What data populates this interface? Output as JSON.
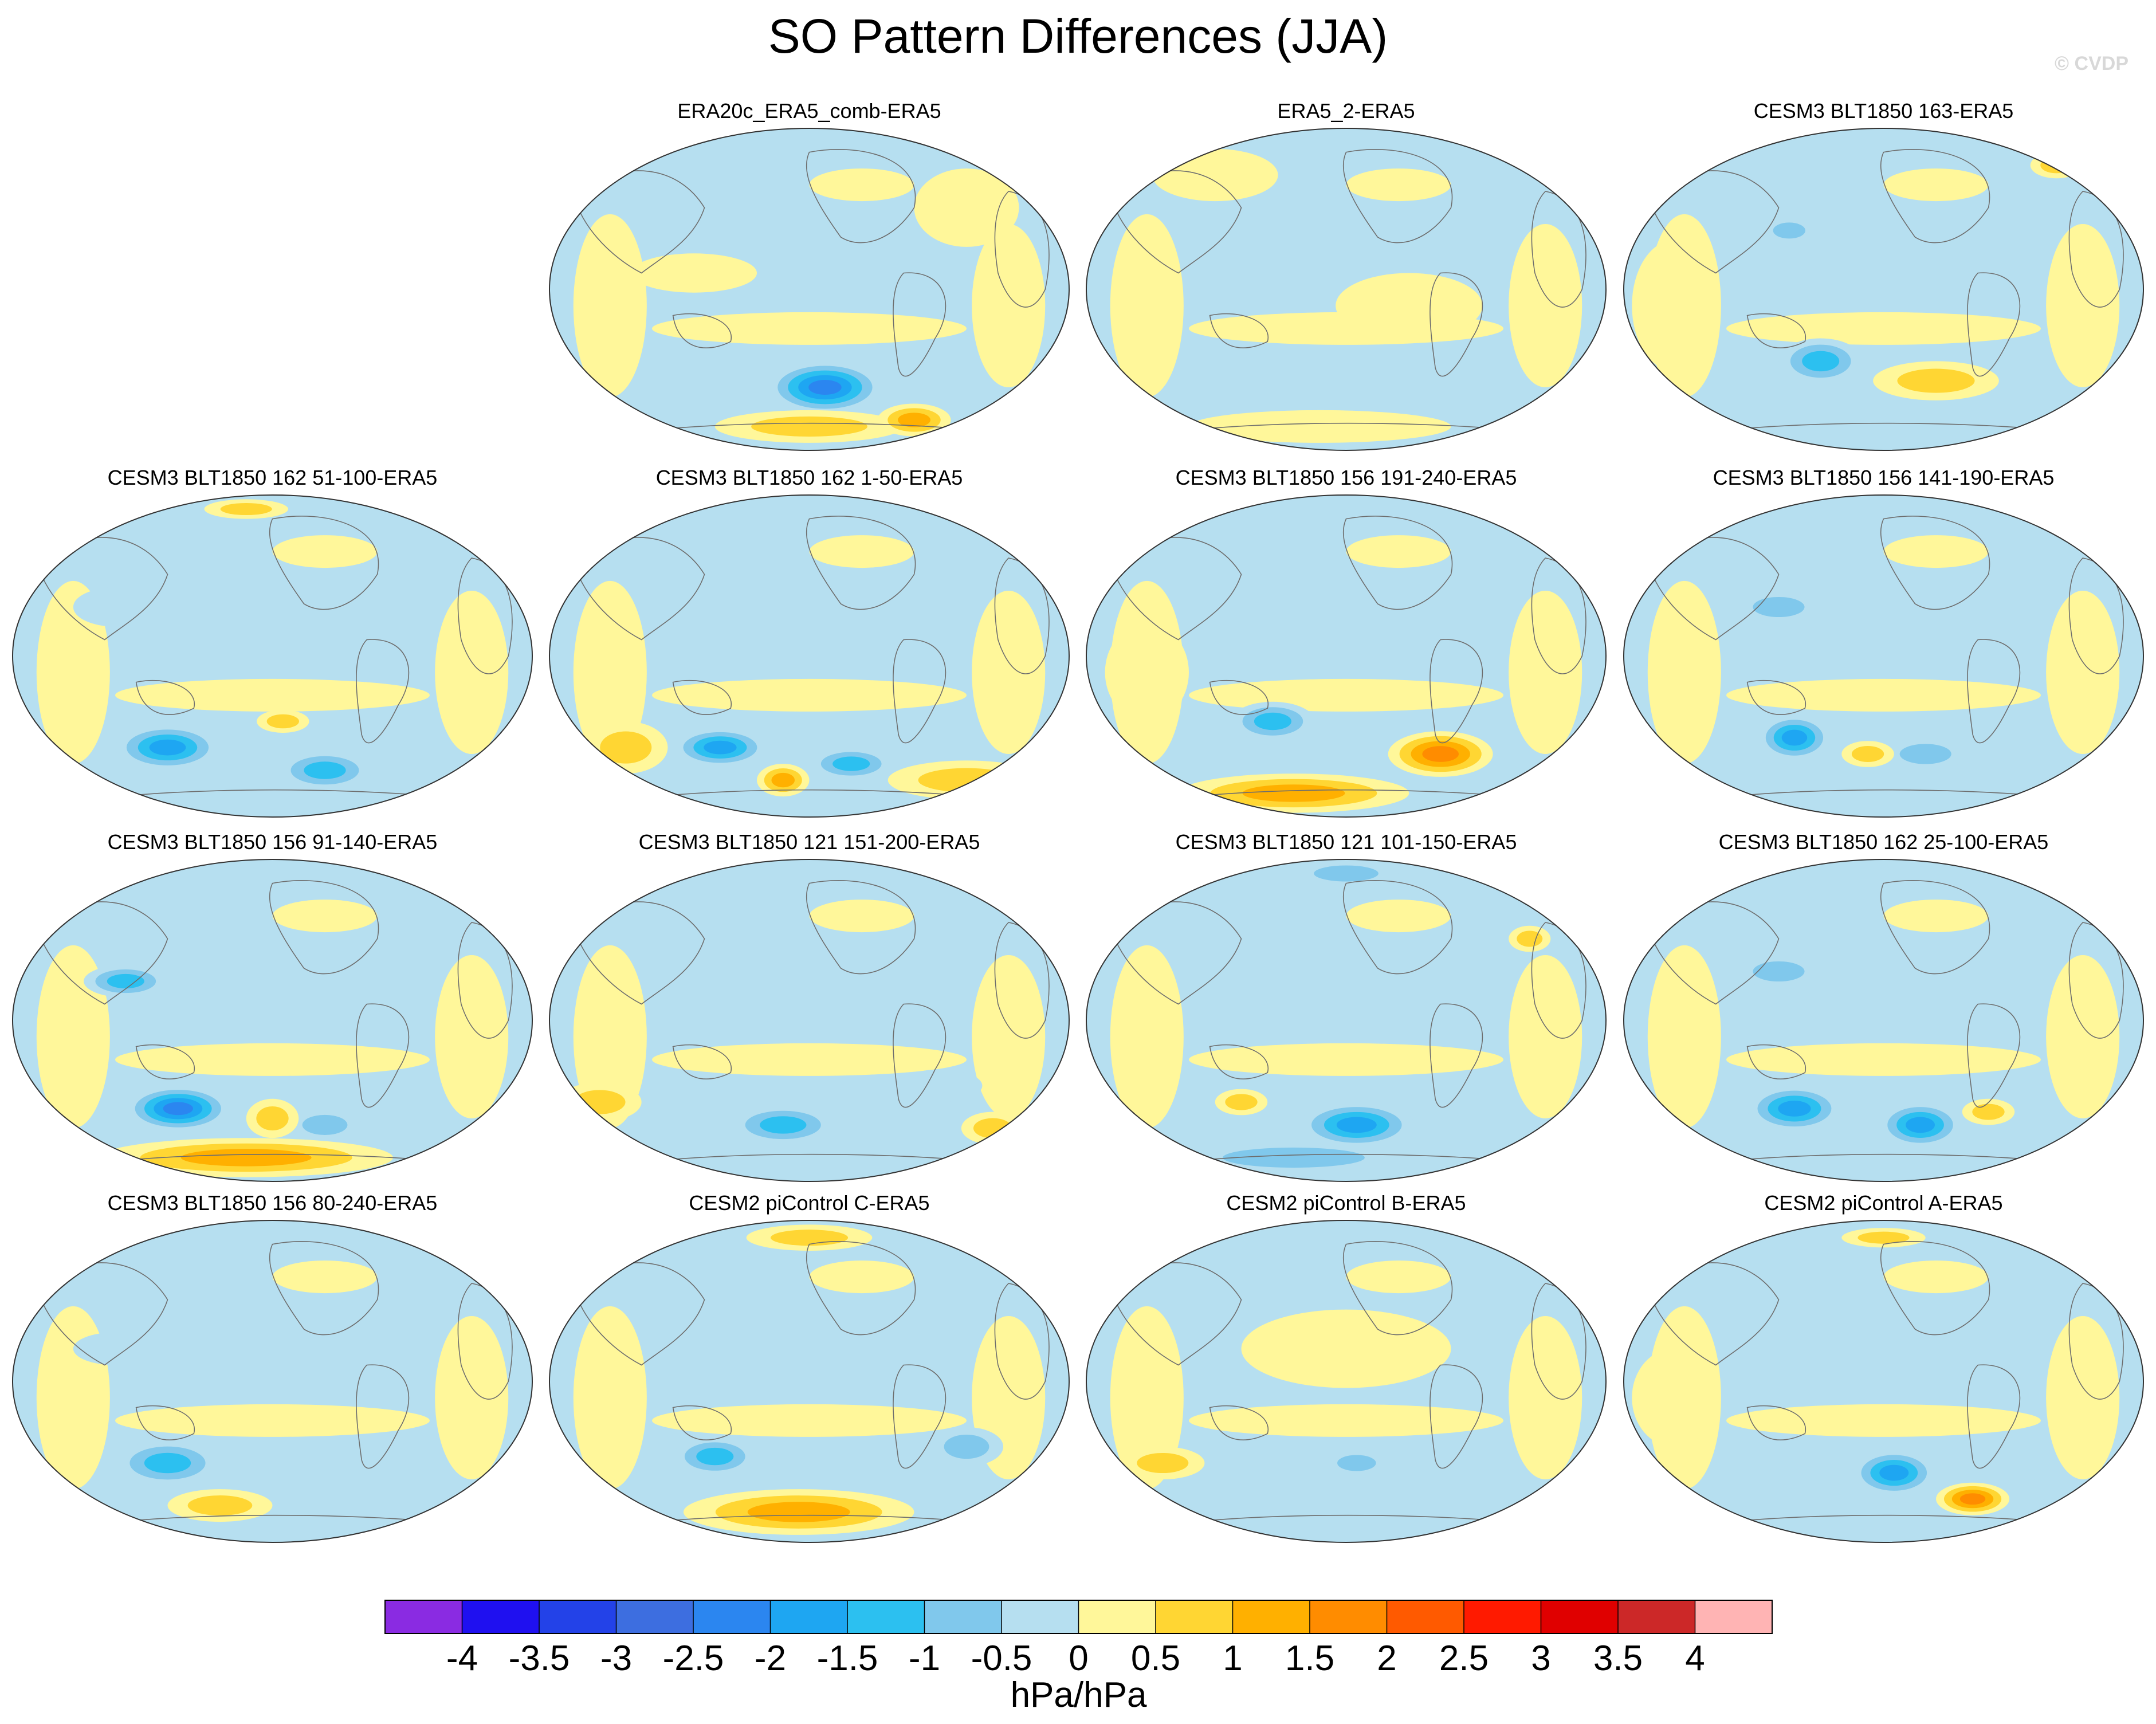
{
  "title": "SO Pattern Differences (JJA)",
  "copyright": "© CVDP",
  "chart_data": {
    "type": "heatmap",
    "projection": "global map panels (ellipse)",
    "units": "hPa/hPa",
    "colorbar": {
      "levels": [
        "-4",
        "-3.5",
        "-3",
        "-2.5",
        "-2",
        "-1.5",
        "-1",
        "-0.5",
        "0",
        "0.5",
        "1",
        "1.5",
        "2",
        "2.5",
        "3",
        "3.5",
        "4"
      ],
      "colors": [
        "#8a2be2",
        "#1f10f0",
        "#2342e8",
        "#3d6ee0",
        "#2b86f0",
        "#1ea6f2",
        "#2cc0f0",
        "#80c8ec",
        "#b6dff0",
        "#fff79a",
        "#ffd633",
        "#ffb000",
        "#ff8c00",
        "#ff5a00",
        "#ff1a00",
        "#e00000",
        "#cc2828",
        "#ffb4b4"
      ]
    },
    "panels": [
      {
        "title": "ERA20c_ERA5_comb-ERA5",
        "row": 0,
        "col": 1,
        "blobs": [
          {
            "x": 0.53,
            "y": 0.8,
            "rx": 0.11,
            "ry": 0.08,
            "v": -2.5
          },
          {
            "x": 0.5,
            "y": 0.92,
            "rx": 0.18,
            "ry": 0.05,
            "v": 1.2
          },
          {
            "x": 0.7,
            "y": 0.9,
            "rx": 0.07,
            "ry": 0.05,
            "v": 1.6
          },
          {
            "x": 0.28,
            "y": 0.45,
            "rx": 0.12,
            "ry": 0.06,
            "v": 0.3
          },
          {
            "x": 0.8,
            "y": 0.25,
            "rx": 0.1,
            "ry": 0.12,
            "v": 0.3
          }
        ]
      },
      {
        "title": "ERA5_2-ERA5",
        "row": 0,
        "col": 2,
        "blobs": [
          {
            "x": 0.62,
            "y": 0.55,
            "rx": 0.14,
            "ry": 0.1,
            "v": 0.3
          },
          {
            "x": 0.45,
            "y": 0.92,
            "rx": 0.25,
            "ry": 0.05,
            "v": 0.3
          },
          {
            "x": 0.25,
            "y": 0.15,
            "rx": 0.12,
            "ry": 0.08,
            "v": 0.3
          }
        ]
      },
      {
        "title": "CESM3 BLT1850 163-ERA5",
        "row": 0,
        "col": 3,
        "blobs": [
          {
            "x": 0.38,
            "y": 0.72,
            "rx": 0.08,
            "ry": 0.07,
            "v": -1.4
          },
          {
            "x": 0.6,
            "y": 0.78,
            "rx": 0.12,
            "ry": 0.06,
            "v": 1.0
          },
          {
            "x": 0.32,
            "y": 0.32,
            "rx": 0.05,
            "ry": 0.04,
            "v": -1.2
          },
          {
            "x": 0.83,
            "y": 0.12,
            "rx": 0.05,
            "ry": 0.04,
            "v": 1.0
          },
          {
            "x": 0.1,
            "y": 0.55,
            "rx": 0.08,
            "ry": 0.2,
            "v": 0.3
          }
        ]
      },
      {
        "title": "CESM3 BLT1850 162 51-100-ERA5",
        "row": 1,
        "col": 0,
        "blobs": [
          {
            "x": 0.3,
            "y": 0.78,
            "rx": 0.1,
            "ry": 0.07,
            "v": -2.0
          },
          {
            "x": 0.6,
            "y": 0.85,
            "rx": 0.09,
            "ry": 0.06,
            "v": -1.4
          },
          {
            "x": 0.52,
            "y": 0.7,
            "rx": 0.05,
            "ry": 0.035,
            "v": 1.0
          },
          {
            "x": 0.45,
            "y": 0.05,
            "rx": 0.08,
            "ry": 0.03,
            "v": 1.0
          },
          {
            "x": 0.2,
            "y": 0.35,
            "rx": 0.08,
            "ry": 0.06,
            "v": -0.7
          }
        ]
      },
      {
        "title": "CESM3 BLT1850 162 1-50-ERA5",
        "row": 1,
        "col": 1,
        "blobs": [
          {
            "x": 0.33,
            "y": 0.78,
            "rx": 0.09,
            "ry": 0.06,
            "v": -2.0
          },
          {
            "x": 0.58,
            "y": 0.83,
            "rx": 0.08,
            "ry": 0.05,
            "v": -1.4
          },
          {
            "x": 0.45,
            "y": 0.88,
            "rx": 0.05,
            "ry": 0.05,
            "v": 1.6
          },
          {
            "x": 0.15,
            "y": 0.78,
            "rx": 0.08,
            "ry": 0.08,
            "v": 1.0
          },
          {
            "x": 0.8,
            "y": 0.88,
            "rx": 0.15,
            "ry": 0.06,
            "v": 1.2
          }
        ]
      },
      {
        "title": "CESM3 BLT1850 156 191-240-ERA5",
        "row": 1,
        "col": 2,
        "blobs": [
          {
            "x": 0.36,
            "y": 0.7,
            "rx": 0.08,
            "ry": 0.06,
            "v": -1.6
          },
          {
            "x": 0.68,
            "y": 0.8,
            "rx": 0.1,
            "ry": 0.07,
            "v": 1.8
          },
          {
            "x": 0.4,
            "y": 0.92,
            "rx": 0.22,
            "ry": 0.06,
            "v": 1.4
          },
          {
            "x": 0.12,
            "y": 0.55,
            "rx": 0.08,
            "ry": 0.15,
            "v": 0.3
          }
        ]
      },
      {
        "title": "CESM3 BLT1850 156 141-190-ERA5",
        "row": 1,
        "col": 3,
        "blobs": [
          {
            "x": 0.33,
            "y": 0.75,
            "rx": 0.07,
            "ry": 0.07,
            "v": -1.8
          },
          {
            "x": 0.58,
            "y": 0.8,
            "rx": 0.08,
            "ry": 0.05,
            "v": -1.2
          },
          {
            "x": 0.47,
            "y": 0.8,
            "rx": 0.05,
            "ry": 0.04,
            "v": 1.0
          },
          {
            "x": 0.3,
            "y": 0.35,
            "rx": 0.08,
            "ry": 0.05,
            "v": -1.0
          }
        ]
      },
      {
        "title": "CESM3 BLT1850 156 91-140-ERA5",
        "row": 2,
        "col": 0,
        "blobs": [
          {
            "x": 0.32,
            "y": 0.77,
            "rx": 0.1,
            "ry": 0.07,
            "v": -2.5
          },
          {
            "x": 0.6,
            "y": 0.82,
            "rx": 0.07,
            "ry": 0.05,
            "v": -1.2
          },
          {
            "x": 0.45,
            "y": 0.92,
            "rx": 0.28,
            "ry": 0.06,
            "v": 1.6
          },
          {
            "x": 0.22,
            "y": 0.38,
            "rx": 0.08,
            "ry": 0.05,
            "v": -1.4
          },
          {
            "x": 0.5,
            "y": 0.8,
            "rx": 0.05,
            "ry": 0.06,
            "v": 1.0
          }
        ]
      },
      {
        "title": "CESM3 BLT1850 121 151-200-ERA5",
        "row": 2,
        "col": 1,
        "blobs": [
          {
            "x": 0.45,
            "y": 0.82,
            "rx": 0.1,
            "ry": 0.06,
            "v": -1.6
          },
          {
            "x": 0.85,
            "y": 0.83,
            "rx": 0.06,
            "ry": 0.05,
            "v": 1.2
          },
          {
            "x": 0.1,
            "y": 0.75,
            "rx": 0.08,
            "ry": 0.06,
            "v": 1.0
          },
          {
            "x": 0.75,
            "y": 0.7,
            "rx": 0.08,
            "ry": 0.05,
            "v": -0.7
          }
        ]
      },
      {
        "title": "CESM3 BLT1850 121 101-150-ERA5",
        "row": 2,
        "col": 2,
        "blobs": [
          {
            "x": 0.52,
            "y": 0.82,
            "rx": 0.11,
            "ry": 0.07,
            "v": -1.8
          },
          {
            "x": 0.4,
            "y": 0.92,
            "rx": 0.22,
            "ry": 0.05,
            "v": -1.2
          },
          {
            "x": 0.5,
            "y": 0.05,
            "rx": 0.1,
            "ry": 0.04,
            "v": -1.2
          },
          {
            "x": 0.3,
            "y": 0.75,
            "rx": 0.05,
            "ry": 0.04,
            "v": 1.0
          },
          {
            "x": 0.85,
            "y": 0.25,
            "rx": 0.04,
            "ry": 0.04,
            "v": 1.0
          }
        ]
      },
      {
        "title": "CESM3 BLT1850 162 25-100-ERA5",
        "row": 2,
        "col": 3,
        "blobs": [
          {
            "x": 0.33,
            "y": 0.77,
            "rx": 0.09,
            "ry": 0.07,
            "v": -1.8
          },
          {
            "x": 0.57,
            "y": 0.82,
            "rx": 0.08,
            "ry": 0.07,
            "v": -1.8
          },
          {
            "x": 0.7,
            "y": 0.78,
            "rx": 0.05,
            "ry": 0.04,
            "v": 1.0
          },
          {
            "x": 0.3,
            "y": 0.35,
            "rx": 0.08,
            "ry": 0.05,
            "v": -1.0
          }
        ]
      },
      {
        "title": "CESM3 BLT1850 156 80-240-ERA5",
        "row": 3,
        "col": 0,
        "blobs": [
          {
            "x": 0.3,
            "y": 0.75,
            "rx": 0.1,
            "ry": 0.07,
            "v": -1.6
          },
          {
            "x": 0.4,
            "y": 0.88,
            "rx": 0.1,
            "ry": 0.05,
            "v": 1.0
          },
          {
            "x": 0.2,
            "y": 0.4,
            "rx": 0.08,
            "ry": 0.05,
            "v": -0.7
          }
        ]
      },
      {
        "title": "CESM2 piControl C-ERA5",
        "row": 3,
        "col": 1,
        "blobs": [
          {
            "x": 0.32,
            "y": 0.73,
            "rx": 0.08,
            "ry": 0.06,
            "v": -1.4
          },
          {
            "x": 0.48,
            "y": 0.9,
            "rx": 0.22,
            "ry": 0.07,
            "v": 1.4
          },
          {
            "x": 0.5,
            "y": 0.06,
            "rx": 0.12,
            "ry": 0.04,
            "v": 1.0
          },
          {
            "x": 0.8,
            "y": 0.7,
            "rx": 0.07,
            "ry": 0.06,
            "v": -0.8
          }
        ]
      },
      {
        "title": "CESM2 piControl B-ERA5",
        "row": 3,
        "col": 2,
        "blobs": [
          {
            "x": 0.52,
            "y": 0.75,
            "rx": 0.06,
            "ry": 0.04,
            "v": -0.8
          },
          {
            "x": 0.15,
            "y": 0.75,
            "rx": 0.08,
            "ry": 0.05,
            "v": 1.0
          },
          {
            "x": 0.5,
            "y": 0.4,
            "rx": 0.2,
            "ry": 0.12,
            "v": 0.3
          }
        ]
      },
      {
        "title": "CESM2 piControl A-ERA5",
        "row": 3,
        "col": 3,
        "blobs": [
          {
            "x": 0.52,
            "y": 0.78,
            "rx": 0.08,
            "ry": 0.07,
            "v": -1.8
          },
          {
            "x": 0.67,
            "y": 0.86,
            "rx": 0.07,
            "ry": 0.05,
            "v": 2.0
          },
          {
            "x": 0.5,
            "y": 0.06,
            "rx": 0.08,
            "ry": 0.03,
            "v": 1.0
          },
          {
            "x": 0.1,
            "y": 0.55,
            "rx": 0.08,
            "ry": 0.15,
            "v": 0.3
          }
        ]
      }
    ]
  }
}
